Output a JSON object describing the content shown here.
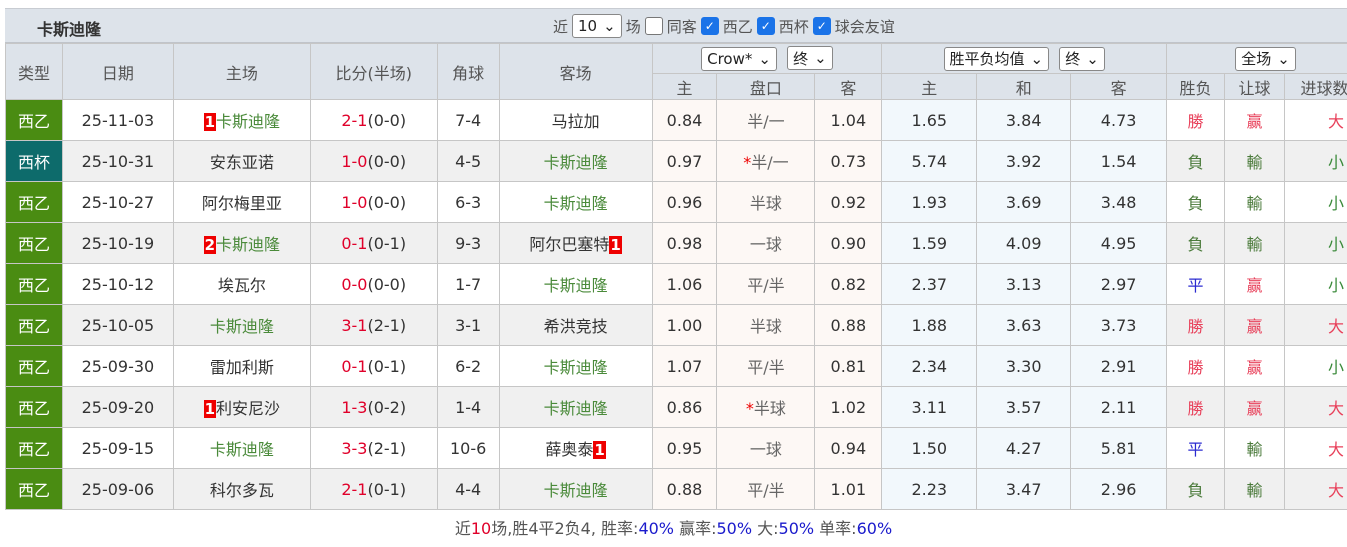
{
  "header": {
    "team": "卡斯迪隆",
    "recent_prefix": "近",
    "recent_count": "10",
    "recent_suffix": "场",
    "same_label": "同客",
    "filters": [
      {
        "label": "西乙",
        "checked": true
      },
      {
        "label": "西杯",
        "checked": true
      },
      {
        "label": "球会友谊",
        "checked": true
      }
    ]
  },
  "columns": {
    "type": "类型",
    "date": "日期",
    "home": "主场",
    "score": "比分(半场)",
    "corner": "角球",
    "away": "客场",
    "odds_company": "Crow*",
    "odds_time": "终",
    "eu_type": "胜平负均值",
    "eu_time": "终",
    "scope": "全场",
    "ah_home": "主",
    "ah_line": "盘口",
    "ah_away": "客",
    "eu_home": "主",
    "eu_draw": "和",
    "eu_away": "客",
    "res": "胜负",
    "hc": "让球",
    "ou": "进球数"
  },
  "colors": {
    "西乙": "#4a8c12",
    "西杯": "#0d6b6b",
    "胜": "#e8405a",
    "平": "#2b2bd0",
    "负": "#4a7a3a",
    "ou_big": "#e8405a",
    "ou_small": "#3a8a3a"
  },
  "rows": [
    {
      "type": "西乙",
      "date": "25-11-03",
      "home_rank": "1",
      "home": "卡斯迪隆",
      "home_team": true,
      "ft": "2-1",
      "ht": "(0-0)",
      "corner": "7-4",
      "away": "马拉加",
      "away_rank": "",
      "away_team": false,
      "ah_h": "0.84",
      "star": false,
      "line": "半/一",
      "ah_a": "1.04",
      "eu_h": "1.65",
      "eu_d": "3.84",
      "eu_a": "4.73",
      "res": "勝",
      "rk": "胜",
      "hc": "赢",
      "ou": "大"
    },
    {
      "type": "西杯",
      "date": "25-10-31",
      "home_rank": "",
      "home": "安东亚诺",
      "home_team": false,
      "ft": "1-0",
      "ht": "(0-0)",
      "corner": "4-5",
      "away": "卡斯迪隆",
      "away_rank": "",
      "away_team": true,
      "ah_h": "0.97",
      "star": true,
      "line": "半/一",
      "ah_a": "0.73",
      "eu_h": "5.74",
      "eu_d": "3.92",
      "eu_a": "1.54",
      "res": "負",
      "rk": "负",
      "hc": "輸",
      "ou": "小"
    },
    {
      "type": "西乙",
      "date": "25-10-27",
      "home_rank": "",
      "home": "阿尔梅里亚",
      "home_team": false,
      "ft": "1-0",
      "ht": "(0-0)",
      "corner": "6-3",
      "away": "卡斯迪隆",
      "away_rank": "",
      "away_team": true,
      "ah_h": "0.96",
      "star": false,
      "line": "半球",
      "ah_a": "0.92",
      "eu_h": "1.93",
      "eu_d": "3.69",
      "eu_a": "3.48",
      "res": "負",
      "rk": "负",
      "hc": "輸",
      "ou": "小"
    },
    {
      "type": "西乙",
      "date": "25-10-19",
      "home_rank": "2",
      "home": "卡斯迪隆",
      "home_team": true,
      "ft": "0-1",
      "ht": "(0-1)",
      "corner": "9-3",
      "away": "阿尔巴塞特",
      "away_rank": "1",
      "away_team": false,
      "ah_h": "0.98",
      "star": false,
      "line": "一球",
      "ah_a": "0.90",
      "eu_h": "1.59",
      "eu_d": "4.09",
      "eu_a": "4.95",
      "res": "負",
      "rk": "负",
      "hc": "輸",
      "ou": "小"
    },
    {
      "type": "西乙",
      "date": "25-10-12",
      "home_rank": "",
      "home": "埃瓦尔",
      "home_team": false,
      "ft": "0-0",
      "ht": "(0-0)",
      "corner": "1-7",
      "away": "卡斯迪隆",
      "away_rank": "",
      "away_team": true,
      "ah_h": "1.06",
      "star": false,
      "line": "平/半",
      "ah_a": "0.82",
      "eu_h": "2.37",
      "eu_d": "3.13",
      "eu_a": "2.97",
      "res": "平",
      "rk": "平",
      "hc": "赢",
      "ou": "小"
    },
    {
      "type": "西乙",
      "date": "25-10-05",
      "home_rank": "",
      "home": "卡斯迪隆",
      "home_team": true,
      "ft": "3-1",
      "ht": "(2-1)",
      "corner": "3-1",
      "away": "希洪竞技",
      "away_rank": "",
      "away_team": false,
      "ah_h": "1.00",
      "star": false,
      "line": "半球",
      "ah_a": "0.88",
      "eu_h": "1.88",
      "eu_d": "3.63",
      "eu_a": "3.73",
      "res": "勝",
      "rk": "胜",
      "hc": "赢",
      "ou": "大"
    },
    {
      "type": "西乙",
      "date": "25-09-30",
      "home_rank": "",
      "home": "雷加利斯",
      "home_team": false,
      "ft": "0-1",
      "ht": "(0-1)",
      "corner": "6-2",
      "away": "卡斯迪隆",
      "away_rank": "",
      "away_team": true,
      "ah_h": "1.07",
      "star": false,
      "line": "平/半",
      "ah_a": "0.81",
      "eu_h": "2.34",
      "eu_d": "3.30",
      "eu_a": "2.91",
      "res": "勝",
      "rk": "胜",
      "hc": "赢",
      "ou": "小"
    },
    {
      "type": "西乙",
      "date": "25-09-20",
      "home_rank": "1",
      "home": "利安尼沙",
      "home_team": false,
      "ft": "1-3",
      "ht": "(0-2)",
      "corner": "1-4",
      "away": "卡斯迪隆",
      "away_rank": "",
      "away_team": true,
      "ah_h": "0.86",
      "star": true,
      "line": "半球",
      "ah_a": "1.02",
      "eu_h": "3.11",
      "eu_d": "3.57",
      "eu_a": "2.11",
      "res": "勝",
      "rk": "胜",
      "hc": "赢",
      "ou": "大"
    },
    {
      "type": "西乙",
      "date": "25-09-15",
      "home_rank": "",
      "home": "卡斯迪隆",
      "home_team": true,
      "ft": "3-3",
      "ht": "(2-1)",
      "corner": "10-6",
      "away": "薛奥泰",
      "away_rank": "1",
      "away_team": false,
      "ah_h": "0.95",
      "star": false,
      "line": "一球",
      "ah_a": "0.94",
      "eu_h": "1.50",
      "eu_d": "4.27",
      "eu_a": "5.81",
      "res": "平",
      "rk": "平",
      "hc": "輸",
      "ou": "大"
    },
    {
      "type": "西乙",
      "date": "25-09-06",
      "home_rank": "",
      "home": "科尔多瓦",
      "home_team": false,
      "ft": "2-1",
      "ht": "(0-1)",
      "corner": "4-4",
      "away": "卡斯迪隆",
      "away_rank": "",
      "away_team": true,
      "ah_h": "0.88",
      "star": false,
      "line": "平/半",
      "ah_a": "1.01",
      "eu_h": "2.23",
      "eu_d": "3.47",
      "eu_a": "2.96",
      "res": "負",
      "rk": "负",
      "hc": "輸",
      "ou": "大"
    }
  ],
  "footer": {
    "p1": "近",
    "n": "10",
    "p2": "场,胜4平2负4, 胜率:",
    "win": "40%",
    "p3": " 赢率:",
    "hc": "50%",
    "p4": " 大:",
    "big": "50%",
    "p5": " 单率:",
    "odd": "60%"
  }
}
